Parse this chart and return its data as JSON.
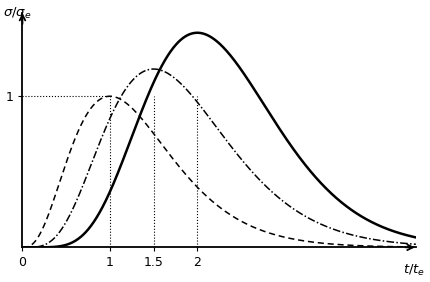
{
  "title": "",
  "xlabel": "t/t_e",
  "ylabel": "σ/σ_e",
  "xlim": [
    0,
    4.5
  ],
  "ylim": [
    0,
    1.55
  ],
  "x_ticks": [
    0,
    1,
    1.5,
    2
  ],
  "x_tick_labels": [
    "0",
    "1",
    "1.5",
    "2"
  ],
  "y_tick_1": 1.0,
  "vlines": [
    1,
    1.5,
    2
  ],
  "hline": 1.0,
  "curve_color": "#000000",
  "background": "#ffffff",
  "curves": [
    {
      "tM": 1.0,
      "peak": 1.0,
      "n": 3.0,
      "style": "dashed",
      "lw": 1.1
    },
    {
      "tM": 1.5,
      "peak": 1.18,
      "n": 4.5,
      "style": "dashdot",
      "lw": 1.1
    },
    {
      "tM": 2.0,
      "peak": 1.42,
      "n": 7.0,
      "style": "solid",
      "lw": 1.8
    }
  ]
}
